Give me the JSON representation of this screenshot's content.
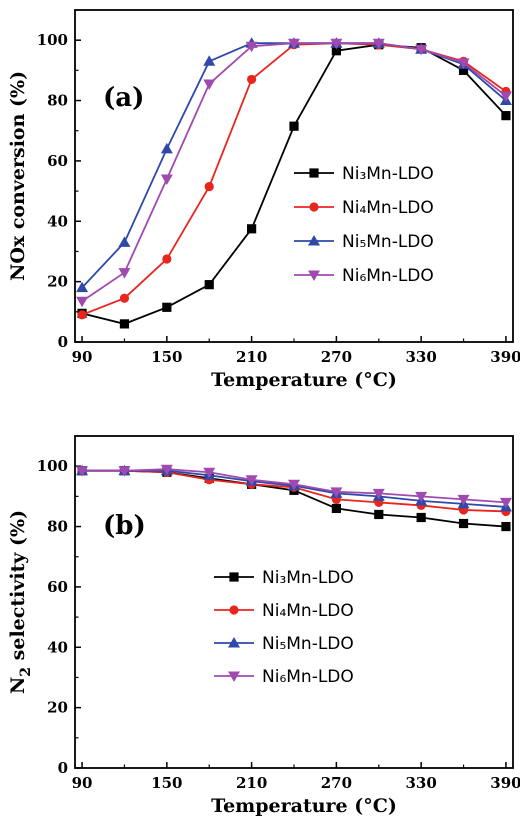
{
  "chart_data": [
    {
      "type": "line",
      "panel_label": "(a)",
      "xlabel": "Temperature (°C)",
      "ylabel": "NOx conversion (%)",
      "xlim": [
        85,
        395
      ],
      "ylim": [
        0,
        110
      ],
      "xticks": [
        90,
        150,
        210,
        270,
        330,
        390
      ],
      "yticks": [
        0,
        20,
        40,
        60,
        80,
        100
      ],
      "grid": false,
      "legend_position": "center-right",
      "x": [
        90,
        120,
        150,
        180,
        210,
        240,
        270,
        300,
        330,
        360,
        390
      ],
      "series": [
        {
          "name": "Ni₃Mn-LDO",
          "color": "#000000",
          "marker": "square",
          "values": [
            9.5,
            6,
            11.5,
            19,
            37.5,
            71.5,
            96.5,
            98.5,
            97.5,
            90,
            75
          ]
        },
        {
          "name": "Ni₄Mn-LDO",
          "color": "#e8261f",
          "marker": "circle",
          "values": [
            9,
            14.5,
            27.5,
            51.5,
            87,
            98.5,
            99,
            98.5,
            97,
            93,
            83
          ]
        },
        {
          "name": "Ni₅Mn-LDO",
          "color": "#2e49a8",
          "marker": "triangle-up",
          "values": [
            18,
            33,
            64,
            93,
            99,
            99,
            99,
            99,
            97,
            92,
            80
          ]
        },
        {
          "name": "Ni₆Mn-LDO",
          "color": "#a04ab0",
          "marker": "triangle-down",
          "values": [
            13.5,
            23,
            54,
            85.5,
            98,
            99,
            99,
            99,
            97,
            92.5,
            81.5
          ]
        }
      ]
    },
    {
      "type": "line",
      "panel_label": "(b)",
      "xlabel": "Temperature (°C)",
      "ylabel_main": "N",
      "ylabel_sub": "2",
      "ylabel_rest": " selectivity (%)",
      "xlim": [
        85,
        395
      ],
      "ylim": [
        0,
        110
      ],
      "xticks": [
        90,
        150,
        210,
        270,
        330,
        390
      ],
      "yticks": [
        0,
        20,
        40,
        60,
        80,
        100
      ],
      "grid": false,
      "legend_position": "center-right",
      "x": [
        90,
        120,
        150,
        180,
        210,
        240,
        270,
        300,
        330,
        360,
        390
      ],
      "series": [
        {
          "name": "Ni₃Mn-LDO",
          "color": "#000000",
          "marker": "square",
          "values": [
            98.5,
            98.5,
            98,
            96,
            94,
            92,
            86,
            84,
            83,
            81,
            80
          ]
        },
        {
          "name": "Ni₄Mn-LDO",
          "color": "#e8261f",
          "marker": "circle",
          "values": [
            98.5,
            98.5,
            98,
            95.5,
            94,
            93,
            89,
            88,
            87,
            85.5,
            85
          ]
        },
        {
          "name": "Ni₅Mn-LDO",
          "color": "#2e49a8",
          "marker": "triangle-up",
          "values": [
            98.5,
            98.5,
            98.5,
            97,
            95,
            93.5,
            91,
            90,
            88.5,
            87.5,
            86.5
          ]
        },
        {
          "name": "Ni₆Mn-LDO",
          "color": "#a04ab0",
          "marker": "triangle-down",
          "values": [
            98.5,
            98.5,
            99,
            98,
            95.5,
            94,
            91.5,
            91,
            90,
            89,
            88
          ]
        }
      ]
    }
  ]
}
